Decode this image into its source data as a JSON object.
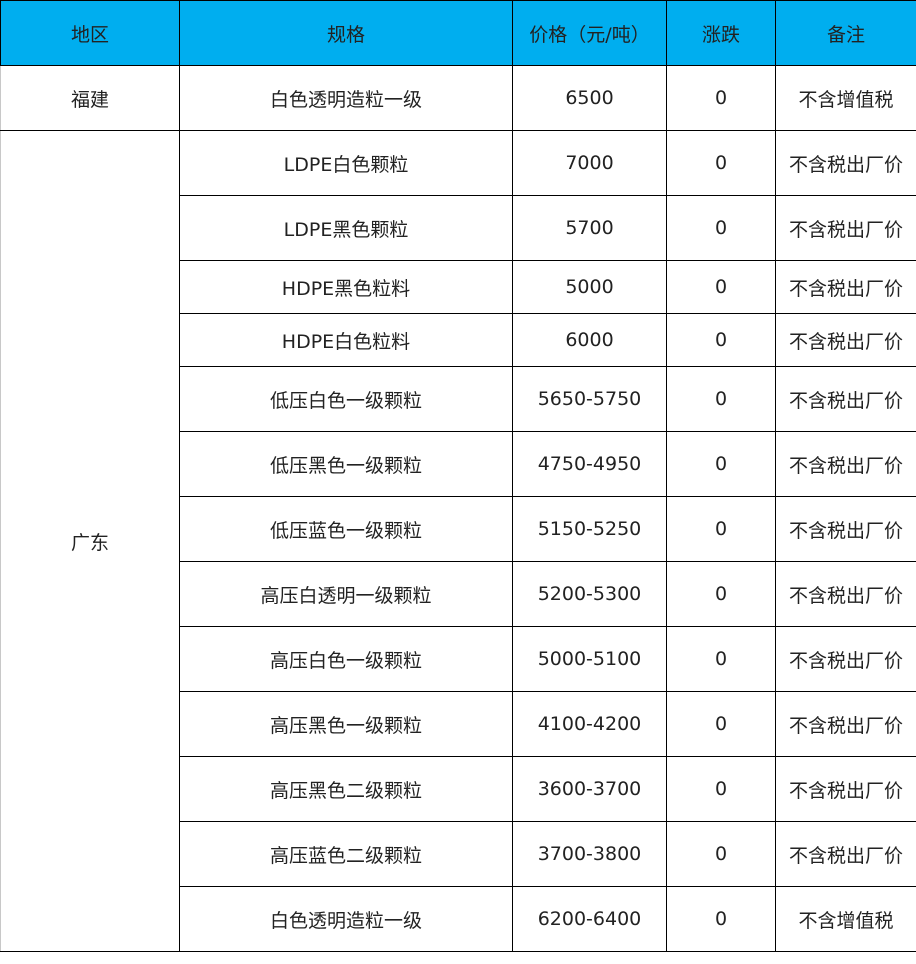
{
  "header_color": "#00AEEF",
  "headers": [
    "地区",
    "规格",
    "价格（元/吨）",
    "涨跌",
    "备注"
  ],
  "rows": [
    {
      "region": "福建",
      "spec": "白色透明造粒一级",
      "price": "6500",
      "change": "0",
      "note": "不含增值税"
    },
    {
      "region": "广东",
      "spec": "LDPE白色颗粒",
      "price": "7000",
      "change": "0",
      "note": "不含税出厂价"
    },
    {
      "spec": "LDPE黑色颗粒",
      "price": "5700",
      "change": "0",
      "note": "不含税出厂价"
    },
    {
      "spec": "HDPE黑色粒料",
      "price": "5000",
      "change": "0",
      "note": "不含税出厂价"
    },
    {
      "spec": "HDPE白色粒料",
      "price": "6000",
      "change": "0",
      "note": "不含税出厂价"
    },
    {
      "spec": "低压白色一级颗粒",
      "price": "5650-5750",
      "change": "0",
      "note": "不含税出厂价"
    },
    {
      "spec": "低压黑色一级颗粒",
      "price": "4750-4950",
      "change": "0",
      "note": "不含税出厂价"
    },
    {
      "spec": "低压蓝色一级颗粒",
      "price": "5150-5250",
      "change": "0",
      "note": "不含税出厂价"
    },
    {
      "spec": "高压白透明一级颗粒",
      "price": "5200-5300",
      "change": "0",
      "note": "不含税出厂价"
    },
    {
      "spec": "高压白色一级颗粒",
      "price": "5000-5100",
      "change": "0",
      "note": "不含税出厂价"
    },
    {
      "spec": "高压黑色一级颗粒",
      "price": "4100-4200",
      "change": "0",
      "note": "不含税出厂价"
    },
    {
      "spec": "高压黑色二级颗粒",
      "price": "3600-3700",
      "change": "0",
      "note": "不含税出厂价"
    },
    {
      "spec": "高压蓝色二级颗粒",
      "price": "3700-3800",
      "change": "0",
      "note": "不含税出厂价"
    },
    {
      "spec": "白色透明造粒一级",
      "price": "6200-6400",
      "change": "0",
      "note": "不含增值税"
    }
  ]
}
